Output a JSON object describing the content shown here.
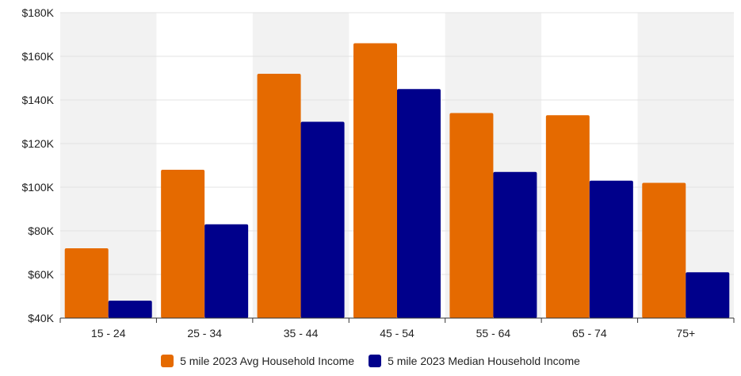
{
  "chart_data": {
    "type": "bar",
    "categories": [
      "15 - 24",
      "25 - 34",
      "35 - 44",
      "45 - 54",
      "55 - 64",
      "65 - 74",
      "75+"
    ],
    "series": [
      {
        "name": "5 mile 2023 Avg Household Income",
        "color": "#e56a00",
        "values": [
          72000,
          108000,
          152000,
          166000,
          134000,
          133000,
          102000
        ]
      },
      {
        "name": "5 mile 2023 Median Household Income",
        "color": "#00008b",
        "values": [
          48000,
          83000,
          130000,
          145000,
          107000,
          103000,
          61000
        ]
      }
    ],
    "ylim": [
      40000,
      180000
    ],
    "yticks": [
      40000,
      60000,
      80000,
      100000,
      120000,
      140000,
      160000,
      180000
    ],
    "ytick_labels": [
      "$40K",
      "$60K",
      "$80K",
      "$100K",
      "$120K",
      "$140K",
      "$160K",
      "$180K"
    ],
    "grid": true,
    "legend_position": "bottom",
    "band_color": "#f2f2f2"
  }
}
